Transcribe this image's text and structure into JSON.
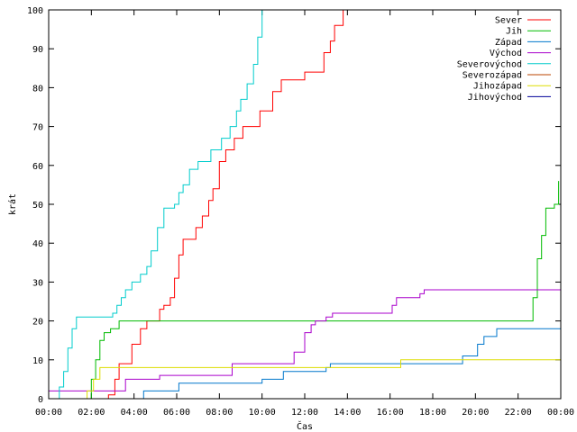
{
  "chart_data": {
    "type": "line",
    "xlabel": "Čas",
    "ylabel": "krát",
    "xlim": [
      0,
      24
    ],
    "ylim": [
      0,
      100
    ],
    "grid": false,
    "legend_position": "top-right",
    "x_tick_labels": [
      "00:00",
      "02:00",
      "04:00",
      "06:00",
      "08:00",
      "10:00",
      "12:00",
      "14:00",
      "16:00",
      "18:00",
      "20:00",
      "22:00",
      "00:00"
    ],
    "y_ticks": [
      0,
      10,
      20,
      30,
      40,
      50,
      60,
      70,
      80,
      90,
      100
    ],
    "series": [
      {
        "name": "Sever",
        "color": "#ff0000",
        "points": [
          [
            0,
            0
          ],
          [
            2.5,
            0
          ],
          [
            2.8,
            1
          ],
          [
            3.1,
            5
          ],
          [
            3.3,
            9
          ],
          [
            3.7,
            9
          ],
          [
            3.9,
            14
          ],
          [
            4.3,
            18
          ],
          [
            4.6,
            20
          ],
          [
            4.9,
            20
          ],
          [
            5.2,
            23
          ],
          [
            5.4,
            24
          ],
          [
            5.7,
            26
          ],
          [
            5.9,
            31
          ],
          [
            6.1,
            37
          ],
          [
            6.3,
            41
          ],
          [
            6.7,
            41
          ],
          [
            6.9,
            44
          ],
          [
            7.2,
            47
          ],
          [
            7.5,
            51
          ],
          [
            7.7,
            54
          ],
          [
            8.0,
            61
          ],
          [
            8.3,
            64
          ],
          [
            8.7,
            67
          ],
          [
            9.1,
            70
          ],
          [
            9.6,
            70
          ],
          [
            9.9,
            74
          ],
          [
            10.2,
            74
          ],
          [
            10.5,
            79
          ],
          [
            10.9,
            82
          ],
          [
            11.7,
            82
          ],
          [
            12.0,
            84
          ],
          [
            12.6,
            84
          ],
          [
            12.9,
            89
          ],
          [
            13.2,
            92
          ],
          [
            13.4,
            96
          ],
          [
            13.8,
            100
          ]
        ]
      },
      {
        "name": "Jih",
        "color": "#00bb00",
        "points": [
          [
            0,
            0
          ],
          [
            1.8,
            0
          ],
          [
            2.0,
            5
          ],
          [
            2.2,
            10
          ],
          [
            2.4,
            15
          ],
          [
            2.6,
            17
          ],
          [
            2.9,
            18
          ],
          [
            3.3,
            20
          ],
          [
            3.6,
            20
          ],
          [
            22.5,
            20
          ],
          [
            22.7,
            26
          ],
          [
            22.9,
            36
          ],
          [
            23.1,
            42
          ],
          [
            23.3,
            49
          ],
          [
            23.7,
            50
          ],
          [
            23.9,
            56
          ]
        ]
      },
      {
        "name": "Západ",
        "color": "#0077cc",
        "points": [
          [
            0,
            0
          ],
          [
            4.4,
            0
          ],
          [
            4.45,
            2
          ],
          [
            6.0,
            2
          ],
          [
            6.1,
            4
          ],
          [
            10.0,
            5
          ],
          [
            11.0,
            7
          ],
          [
            13.0,
            8
          ],
          [
            13.2,
            9
          ],
          [
            19.2,
            9
          ],
          [
            19.4,
            11
          ],
          [
            20.1,
            14
          ],
          [
            20.4,
            16
          ],
          [
            21.0,
            18
          ],
          [
            24,
            18
          ]
        ]
      },
      {
        "name": "Východ",
        "color": "#aa00cc",
        "points": [
          [
            0,
            2
          ],
          [
            3.0,
            2
          ],
          [
            3.6,
            5
          ],
          [
            5.0,
            5
          ],
          [
            5.2,
            6
          ],
          [
            8.4,
            6
          ],
          [
            8.6,
            9
          ],
          [
            11.2,
            9
          ],
          [
            11.5,
            12
          ],
          [
            12.0,
            17
          ],
          [
            12.3,
            19
          ],
          [
            12.5,
            20
          ],
          [
            13.0,
            21
          ],
          [
            13.3,
            22
          ],
          [
            15.8,
            22
          ],
          [
            16.1,
            24
          ],
          [
            16.3,
            26
          ],
          [
            17.4,
            27
          ],
          [
            17.6,
            28
          ],
          [
            23.9,
            28
          ],
          [
            24,
            30
          ]
        ]
      },
      {
        "name": "Severovýchod",
        "color": "#00cccc",
        "points": [
          [
            0,
            0
          ],
          [
            0.3,
            0
          ],
          [
            0.5,
            3
          ],
          [
            0.7,
            7
          ],
          [
            0.9,
            13
          ],
          [
            1.1,
            18
          ],
          [
            1.3,
            21
          ],
          [
            2.7,
            21
          ],
          [
            3.0,
            22
          ],
          [
            3.2,
            24
          ],
          [
            3.4,
            26
          ],
          [
            3.6,
            28
          ],
          [
            3.9,
            30
          ],
          [
            4.3,
            32
          ],
          [
            4.6,
            34
          ],
          [
            4.8,
            38
          ],
          [
            5.1,
            44
          ],
          [
            5.4,
            49
          ],
          [
            5.9,
            50
          ],
          [
            6.1,
            53
          ],
          [
            6.3,
            55
          ],
          [
            6.6,
            59
          ],
          [
            7.0,
            61
          ],
          [
            7.6,
            64
          ],
          [
            8.1,
            67
          ],
          [
            8.5,
            70
          ],
          [
            8.8,
            74
          ],
          [
            9.0,
            77
          ],
          [
            9.3,
            81
          ],
          [
            9.6,
            86
          ],
          [
            9.8,
            93
          ],
          [
            10.0,
            100
          ]
        ]
      },
      {
        "name": "Severozápad",
        "color": "#bb4400",
        "points": []
      },
      {
        "name": "Jihozápad",
        "color": "#dddd00",
        "points": [
          [
            0,
            0
          ],
          [
            1.7,
            0
          ],
          [
            1.8,
            2
          ],
          [
            2.1,
            5
          ],
          [
            2.4,
            8
          ],
          [
            3.0,
            8
          ],
          [
            4.2,
            8
          ],
          [
            4.6,
            8
          ],
          [
            8.7,
            8
          ],
          [
            8.9,
            8
          ],
          [
            10.0,
            8
          ],
          [
            11.5,
            8
          ],
          [
            12.2,
            8
          ],
          [
            16.3,
            8
          ],
          [
            16.4,
            8
          ],
          [
            16.5,
            10
          ],
          [
            20.0,
            10
          ],
          [
            24,
            10
          ]
        ]
      },
      {
        "name": "Jihovýchod",
        "color": "#000099",
        "points": []
      }
    ]
  }
}
